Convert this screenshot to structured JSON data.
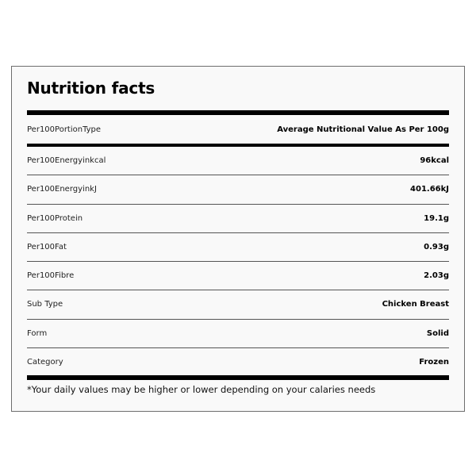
{
  "title": "Nutrition facts",
  "header_row": {
    "label": "Per100PortionType",
    "value": "Average Nutritional Value As Per 100g"
  },
  "rows": [
    {
      "label": "Per100Energyinkcal",
      "value": "96kcal"
    },
    {
      "label": "Per100EnergyinkJ",
      "value": "401.66kJ"
    },
    {
      "label": "Per100Protein",
      "value": "19.1g"
    },
    {
      "label": "Per100Fat",
      "value": "0.93g"
    },
    {
      "label": "Per100Fibre",
      "value": "2.03g"
    },
    {
      "label": "Sub Type",
      "value": "Chicken Breast"
    },
    {
      "label": "Form",
      "value": "Solid"
    },
    {
      "label": "Category",
      "value": "Frozen"
    }
  ],
  "footnote": "*Your daily values may be higher or lower depending on your calaries needs"
}
